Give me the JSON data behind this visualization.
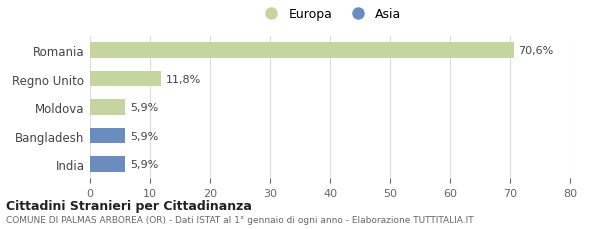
{
  "categories": [
    "Romania",
    "Regno Unito",
    "Moldova",
    "Bangladesh",
    "India"
  ],
  "values": [
    70.6,
    11.8,
    5.9,
    5.9,
    5.9
  ],
  "labels": [
    "70,6%",
    "11,8%",
    "5,9%",
    "5,9%",
    "5,9%"
  ],
  "colors": [
    "#c5d5a0",
    "#c5d5a0",
    "#c5d5a0",
    "#6b8cbf",
    "#6b8cbf"
  ],
  "europa_color": "#c5d5a0",
  "asia_color": "#6b8cbf",
  "xlim": [
    0,
    80
  ],
  "xticks": [
    0,
    10,
    20,
    30,
    40,
    50,
    60,
    70,
    80
  ],
  "title_bold": "Cittadini Stranieri per Cittadinanza",
  "subtitle": "COMUNE DI PALMAS ARBOREA (OR) - Dati ISTAT al 1° gennaio di ogni anno - Elaborazione TUTTITALIA.IT",
  "background_color": "#ffffff",
  "grid_color": "#dddddd"
}
